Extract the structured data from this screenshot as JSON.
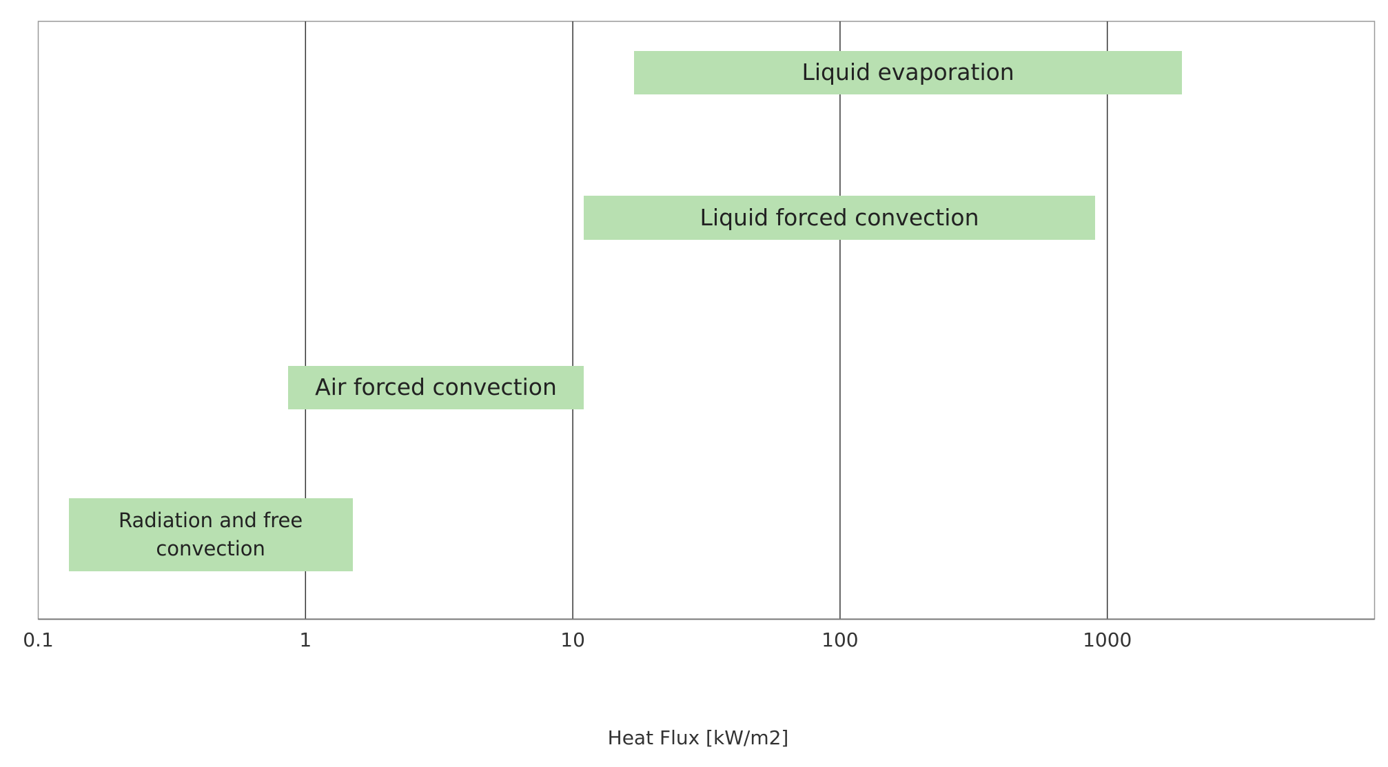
{
  "chart_data": {
    "type": "floating-bar",
    "x_label": "Heat Flux [kW/m2]",
    "categories": [
      "Liquid evaporation",
      "Liquid forced convection",
      "Air forced convection",
      "Radiation and free convection"
    ],
    "starts": [
      17,
      11,
      0.86,
      0.13
    ],
    "ends": [
      1900,
      900,
      11,
      1.5
    ],
    "color": "#b8e0b1",
    "xscale": "log",
    "xlim": [
      0.1,
      10000
    ],
    "xticks": [
      0.1,
      1,
      10,
      100,
      1000
    ],
    "grid": true
  }
}
